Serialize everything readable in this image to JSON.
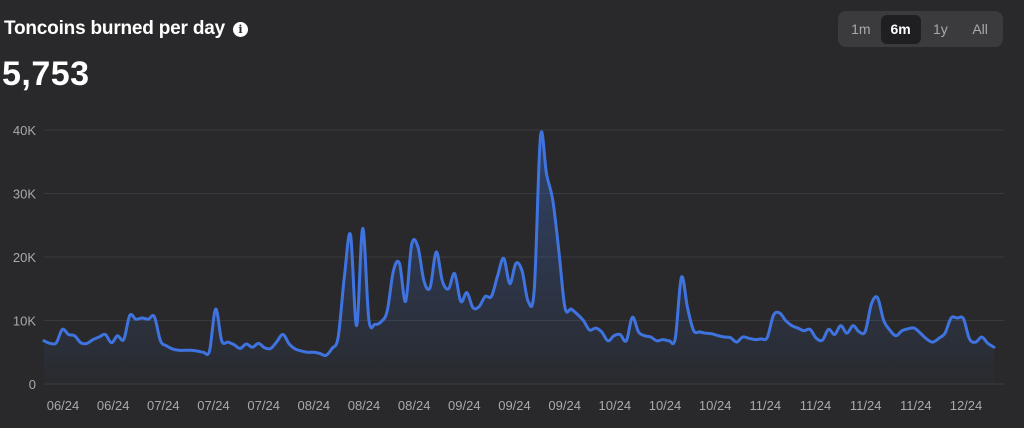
{
  "header": {
    "title": "Toncoins burned per day",
    "info_icon": "info-icon",
    "current_value": "5,753"
  },
  "range_tabs": {
    "items": [
      {
        "label": "1m",
        "active": false
      },
      {
        "label": "6m",
        "active": true
      },
      {
        "label": "1y",
        "active": false
      },
      {
        "label": "All",
        "active": false
      }
    ]
  },
  "colors": {
    "background": "#29292b",
    "line": "#3f74e0",
    "grid": "#3a3a3d",
    "tick_text": "#a9a9ad"
  },
  "chart_data": {
    "type": "area",
    "title": "Toncoins burned per day",
    "xlabel": "",
    "ylabel": "",
    "ylim": [
      0,
      40000
    ],
    "yticks": [
      0,
      10000,
      20000,
      30000,
      40000
    ],
    "ytick_labels": [
      "0",
      "10K",
      "20K",
      "30K",
      "40K"
    ],
    "xtick_labels": [
      "06/24",
      "06/24",
      "07/24",
      "07/24",
      "07/24",
      "08/24",
      "08/24",
      "08/24",
      "09/24",
      "09/24",
      "09/24",
      "10/24",
      "10/24",
      "10/24",
      "11/24",
      "11/24",
      "11/24",
      "11/24",
      "12/24"
    ],
    "grid": true,
    "series": [
      {
        "values": [
          6800,
          6400,
          6500,
          8600,
          7800,
          7600,
          6500,
          6400,
          7000,
          7400,
          7800,
          6500,
          7600,
          7000,
          10800,
          10200,
          10400,
          10200,
          10600,
          6800,
          6000,
          5500,
          5300,
          5300,
          5300,
          5200,
          5000,
          5200,
          11800,
          6800,
          6600,
          6200,
          5600,
          6300,
          5800,
          6400,
          5700,
          5600,
          6700,
          7800,
          6300,
          5500,
          5200,
          5000,
          5000,
          4800,
          4500,
          5600,
          7400,
          16800,
          23500,
          9200,
          24500,
          10200,
          9400,
          9800,
          11500,
          17800,
          19000,
          13000,
          22000,
          21600,
          16200,
          15200,
          20800,
          16200,
          15000,
          17400,
          13000,
          14400,
          12000,
          12200,
          13800,
          13800,
          17000,
          19800,
          15800,
          19000,
          17800,
          13000,
          15000,
          39000,
          33000,
          29000,
          21000,
          12000,
          11800,
          11000,
          10000,
          8500,
          8800,
          8200,
          6800,
          7600,
          7800,
          6800,
          10500,
          8200,
          7600,
          7400,
          6800,
          7000,
          6800,
          7200,
          16800,
          12000,
          8400,
          8200,
          8000,
          7900,
          7600,
          7400,
          7300,
          6600,
          7400,
          7200,
          7000,
          7100,
          7300,
          10800,
          11200,
          10000,
          9200,
          8800,
          8400,
          8600,
          7200,
          6900,
          8600,
          7800,
          9200,
          8000,
          9200,
          8200,
          8300,
          12600,
          13600,
          10000,
          8500,
          7600,
          8400,
          8700,
          8800,
          8000,
          7100,
          6600,
          7200,
          8000,
          10400,
          10400,
          10300,
          7100,
          6600,
          7400,
          6400,
          5800
        ]
      }
    ]
  }
}
